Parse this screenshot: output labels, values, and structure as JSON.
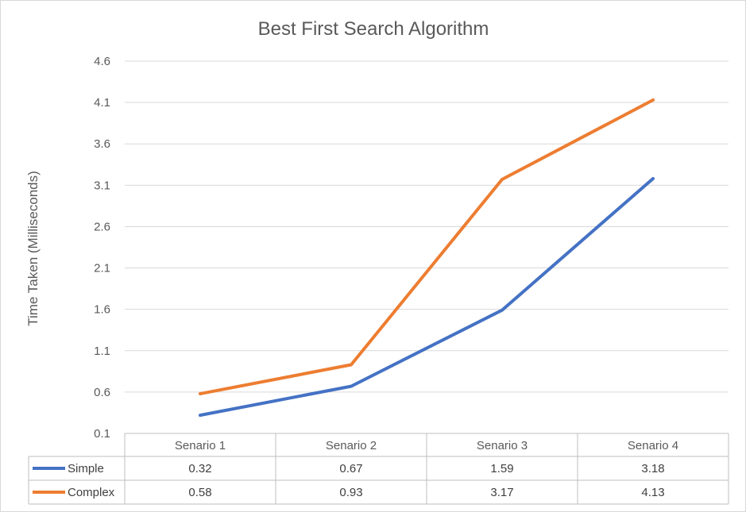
{
  "chart_data": {
    "type": "line",
    "title": "Best First Search Algorithm",
    "ylabel": "Time Taken (Milliseconds)",
    "xlabel": "",
    "categories": [
      "Senario 1",
      "Senario 2",
      "Senario 3",
      "Senario 4"
    ],
    "ylim": [
      0.1,
      4.6
    ],
    "yticks": [
      "4.6",
      "4.1",
      "3.6",
      "3.1",
      "2.6",
      "2.1",
      "1.6",
      "1.1",
      "0.6",
      "0.1"
    ],
    "grid": true,
    "legend": "data-table",
    "series": [
      {
        "name": "Simple",
        "color": "#4472c4",
        "values": [
          0.32,
          0.67,
          1.59,
          3.18
        ],
        "labels": [
          "0.32",
          "0.67",
          "1.59",
          "3.18"
        ]
      },
      {
        "name": "Complex",
        "color": "#ed7d31",
        "values": [
          0.58,
          0.93,
          3.17,
          4.13
        ],
        "labels": [
          "0.58",
          "0.93",
          "3.17",
          "4.13"
        ]
      }
    ]
  }
}
